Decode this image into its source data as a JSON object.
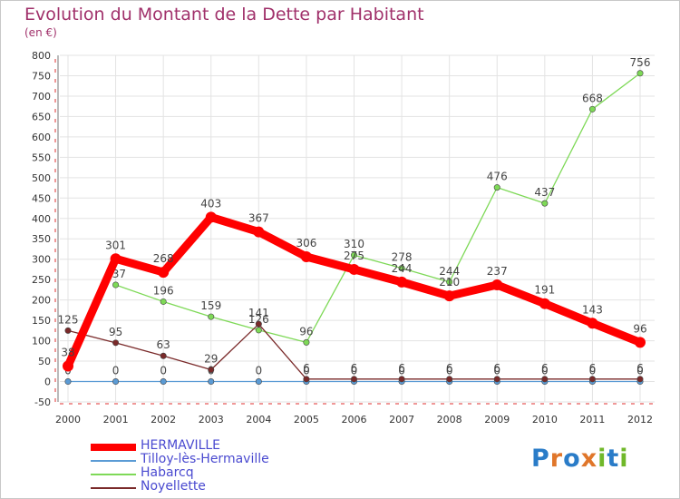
{
  "chart_data": {
    "type": "line",
    "title": "Evolution du Montant de la Dette par Habitant",
    "subtitle": "(en €)",
    "categories": [
      "2000",
      "2001",
      "2002",
      "2003",
      "2004",
      "2005",
      "2006",
      "2007",
      "2008",
      "2009",
      "2010",
      "2011",
      "2012"
    ],
    "ylim": [
      -50,
      800
    ],
    "yticks": [
      -50,
      0,
      50,
      100,
      150,
      200,
      250,
      300,
      350,
      400,
      450,
      500,
      550,
      600,
      650,
      700,
      750,
      800
    ],
    "grid": true,
    "legend_position": "bottom-left",
    "series": [
      {
        "name": "HERMAVILLE",
        "color": "#ff0000",
        "values": [
          38,
          301,
          268,
          403,
          367,
          306,
          275,
          244,
          210,
          237,
          191,
          143,
          96
        ],
        "labels": [
          "38",
          "301",
          "268",
          "403",
          "367",
          "306",
          "275",
          "244",
          "210",
          "237",
          "191",
          "143",
          "96"
        ]
      },
      {
        "name": "Tilloy-lès-Hermaville",
        "color": "#5b9bd5",
        "values": [
          0,
          0,
          0,
          0,
          0,
          0,
          0,
          0,
          0,
          0,
          0,
          0,
          0
        ],
        "labels": [
          "0",
          "0",
          "0",
          "0",
          "0",
          "0",
          "0",
          "0",
          "0",
          "0",
          "0",
          "0",
          "0"
        ]
      },
      {
        "name": "Habarcq",
        "color": "#7ed957",
        "values": [
          null,
          237,
          196,
          159,
          126,
          96,
          310,
          278,
          244,
          476,
          437,
          668,
          756
        ],
        "labels": [
          "",
          "237",
          "196",
          "159",
          "126",
          "96",
          "310",
          "278",
          "244",
          "476",
          "437",
          "668",
          "756"
        ]
      },
      {
        "name": "Noyellette",
        "color": "#7a2a2a",
        "values": [
          125,
          95,
          63,
          29,
          141,
          6,
          6,
          6,
          6,
          6,
          6,
          6,
          6
        ],
        "labels": [
          "125",
          "95",
          "63",
          "29",
          "141",
          "6",
          "6",
          "6",
          "6",
          "6",
          "6",
          "6",
          "6"
        ]
      }
    ]
  },
  "branding": {
    "logo_text": "Proxiti"
  }
}
